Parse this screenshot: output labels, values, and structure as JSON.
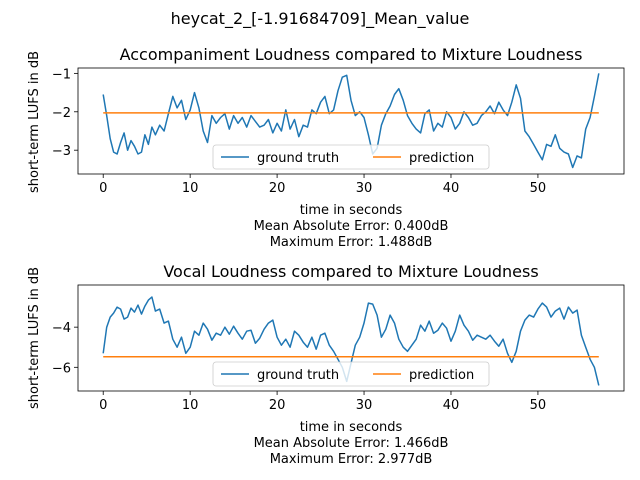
{
  "figure": {
    "suptitle": "heycat_2_[-1.91684709]_Mean_value"
  },
  "chart_data": [
    {
      "type": "line",
      "title": "Accompaniment Loudness compared to Mixture Loudness",
      "xlabel": "time in seconds",
      "ylabel": "short-term LUFS in dB",
      "notes": [
        "Mean Absolute Error: 0.400dB",
        "Maximum Error: 1.488dB"
      ],
      "xlim": [
        -2.9,
        59.9
      ],
      "ylim": [
        -3.62,
        -0.86
      ],
      "xticks": [
        0,
        10,
        20,
        30,
        40,
        50
      ],
      "yticks": [
        -3,
        -2,
        -1
      ],
      "grid": false,
      "legend": {
        "placement": "lower-center",
        "ncol": 2
      },
      "series": [
        {
          "name": "ground truth",
          "color": "#1f77b4",
          "x": [
            0,
            0.4,
            0.8,
            1.2,
            1.6,
            2.0,
            2.4,
            2.8,
            3.2,
            3.6,
            4.0,
            4.4,
            4.8,
            5.2,
            5.6,
            6.0,
            6.5,
            7.0,
            7.5,
            8.0,
            8.5,
            9.0,
            9.5,
            10.0,
            10.5,
            11.0,
            11.5,
            12.0,
            12.5,
            13.0,
            13.5,
            14.0,
            14.5,
            15.0,
            15.5,
            16.0,
            16.5,
            17.0,
            17.5,
            18.0,
            18.5,
            19.0,
            19.5,
            20.0,
            20.5,
            21.0,
            21.5,
            22.0,
            22.5,
            23.0,
            23.5,
            24.0,
            24.5,
            25.0,
            25.5,
            26.0,
            26.5,
            27.0,
            27.5,
            28.0,
            28.5,
            29.0,
            29.5,
            30.0,
            30.5,
            31.0,
            31.5,
            32.0,
            32.5,
            33.0,
            33.5,
            34.0,
            34.5,
            35.0,
            35.5,
            36.0,
            36.5,
            37.0,
            37.5,
            38.0,
            38.5,
            39.0,
            39.5,
            40.0,
            40.5,
            41.0,
            41.5,
            42.0,
            42.5,
            43.0,
            43.5,
            44.0,
            44.5,
            45.0,
            45.5,
            46.0,
            46.5,
            47.0,
            47.5,
            48.0,
            48.5,
            49.0,
            49.5,
            50.0,
            50.5,
            51.0,
            51.5,
            52.0,
            52.5,
            53.0,
            53.5,
            54.0,
            54.5,
            55.0,
            55.5,
            56.0,
            56.5,
            57.0
          ],
          "y": [
            -1.55,
            -2.1,
            -2.7,
            -3.05,
            -3.1,
            -2.8,
            -2.55,
            -3.0,
            -2.75,
            -2.9,
            -3.1,
            -3.05,
            -2.6,
            -2.85,
            -2.4,
            -2.6,
            -2.35,
            -2.5,
            -2.05,
            -1.6,
            -1.9,
            -1.7,
            -2.2,
            -1.95,
            -1.5,
            -1.9,
            -2.5,
            -2.8,
            -2.1,
            -2.3,
            -2.15,
            -2.05,
            -2.45,
            -2.1,
            -2.3,
            -2.15,
            -2.4,
            -2.1,
            -2.25,
            -2.4,
            -2.35,
            -2.2,
            -2.55,
            -2.3,
            -2.5,
            -1.95,
            -2.45,
            -2.2,
            -2.65,
            -2.35,
            -2.4,
            -1.95,
            -2.05,
            -1.75,
            -1.6,
            -2.05,
            -1.95,
            -1.45,
            -1.1,
            -1.05,
            -1.7,
            -2.1,
            -2.0,
            -2.15,
            -2.6,
            -3.1,
            -2.95,
            -2.35,
            -2.05,
            -1.85,
            -1.55,
            -1.4,
            -1.7,
            -2.1,
            -2.3,
            -2.45,
            -2.55,
            -2.05,
            -1.95,
            -2.5,
            -2.3,
            -2.4,
            -2.0,
            -2.15,
            -2.45,
            -2.3,
            -2.0,
            -2.15,
            -2.35,
            -2.3,
            -2.1,
            -2.0,
            -1.85,
            -2.05,
            -1.75,
            -1.95,
            -2.1,
            -1.75,
            -1.3,
            -1.65,
            -2.5,
            -2.65,
            -2.85,
            -3.05,
            -3.25,
            -2.85,
            -2.9,
            -2.6,
            -2.95,
            -3.05,
            -3.1,
            -3.45,
            -3.15,
            -3.2,
            -2.45,
            -2.15,
            -1.6,
            -1.0
          ],
          "line_width": 1.5
        },
        {
          "name": "prediction",
          "color": "#ff7f0e",
          "x": [
            0,
            57
          ],
          "y": [
            -2.03,
            -2.03
          ],
          "line_width": 1.5
        }
      ]
    },
    {
      "type": "line",
      "title": "Vocal Loudness compared to Mixture Loudness",
      "xlabel": "time in seconds",
      "ylabel": "short-term LUFS in dB",
      "notes": [
        "Mean Absolute Error: 1.466dB",
        "Maximum Error: 2.977dB"
      ],
      "xlim": [
        -2.9,
        59.9
      ],
      "ylim": [
        -7.18,
        -1.9
      ],
      "xticks": [
        0,
        10,
        20,
        30,
        40,
        50
      ],
      "yticks": [
        -6,
        -4
      ],
      "grid": false,
      "legend": {
        "placement": "lower-center",
        "ncol": 2
      },
      "series": [
        {
          "name": "ground truth",
          "color": "#1f77b4",
          "x": [
            0,
            0.4,
            0.8,
            1.2,
            1.6,
            2.0,
            2.4,
            2.8,
            3.2,
            3.6,
            4.0,
            4.4,
            4.8,
            5.2,
            5.6,
            6.0,
            6.5,
            7.0,
            7.5,
            8.0,
            8.5,
            9.0,
            9.5,
            10.0,
            10.5,
            11.0,
            11.5,
            12.0,
            12.5,
            13.0,
            13.5,
            14.0,
            14.5,
            15.0,
            15.5,
            16.0,
            16.5,
            17.0,
            17.5,
            18.0,
            18.5,
            19.0,
            19.5,
            20.0,
            20.5,
            21.0,
            21.5,
            22.0,
            22.5,
            23.0,
            23.5,
            24.0,
            24.5,
            25.0,
            25.5,
            26.0,
            26.5,
            27.0,
            27.5,
            28.0,
            28.5,
            29.0,
            29.5,
            30.0,
            30.5,
            31.0,
            31.5,
            32.0,
            32.5,
            33.0,
            33.5,
            34.0,
            34.5,
            35.0,
            35.5,
            36.0,
            36.5,
            37.0,
            37.5,
            38.0,
            38.5,
            39.0,
            39.5,
            40.0,
            40.5,
            41.0,
            41.5,
            42.0,
            42.5,
            43.0,
            43.5,
            44.0,
            44.5,
            45.0,
            45.5,
            46.0,
            46.5,
            47.0,
            47.5,
            48.0,
            48.5,
            49.0,
            49.5,
            50.0,
            50.5,
            51.0,
            51.5,
            52.0,
            52.5,
            53.0,
            53.5,
            54.0,
            54.5,
            55.0,
            55.5,
            56.0,
            56.5,
            57.0
          ],
          "y": [
            -5.3,
            -4.0,
            -3.5,
            -3.3,
            -3.0,
            -3.1,
            -3.6,
            -3.5,
            -3.05,
            -3.25,
            -2.9,
            -3.35,
            -2.95,
            -2.65,
            -2.5,
            -3.2,
            -3.1,
            -3.8,
            -3.7,
            -4.6,
            -5.0,
            -4.5,
            -5.3,
            -5.0,
            -4.2,
            -4.4,
            -3.8,
            -4.1,
            -4.65,
            -4.3,
            -4.4,
            -4.0,
            -4.35,
            -3.95,
            -4.3,
            -4.6,
            -4.2,
            -4.15,
            -4.8,
            -4.55,
            -4.1,
            -3.8,
            -3.65,
            -4.5,
            -4.9,
            -4.6,
            -5.0,
            -4.2,
            -4.4,
            -4.75,
            -5.0,
            -4.5,
            -5.1,
            -4.4,
            -4.3,
            -4.9,
            -5.2,
            -5.6,
            -6.0,
            -6.7,
            -5.8,
            -4.9,
            -4.5,
            -3.8,
            -2.8,
            -2.85,
            -3.4,
            -4.5,
            -4.1,
            -3.4,
            -3.8,
            -4.6,
            -5.0,
            -5.2,
            -4.9,
            -4.6,
            -3.9,
            -4.2,
            -3.7,
            -4.3,
            -4.15,
            -3.8,
            -4.05,
            -4.7,
            -4.2,
            -3.4,
            -3.9,
            -4.2,
            -4.65,
            -4.4,
            -4.5,
            -4.6,
            -4.4,
            -4.7,
            -4.95,
            -4.6,
            -5.3,
            -5.75,
            -5.2,
            -4.2,
            -3.65,
            -3.4,
            -3.5,
            -3.1,
            -2.8,
            -3.0,
            -3.5,
            -3.2,
            -3.05,
            -3.6,
            -3.0,
            -3.3,
            -3.15,
            -4.4,
            -5.0,
            -5.6,
            -6.0,
            -6.9
          ]
        },
        {
          "name": "prediction",
          "color": "#ff7f0e",
          "x": [
            0,
            57
          ],
          "y": [
            -5.47,
            -5.47
          ]
        }
      ]
    }
  ]
}
